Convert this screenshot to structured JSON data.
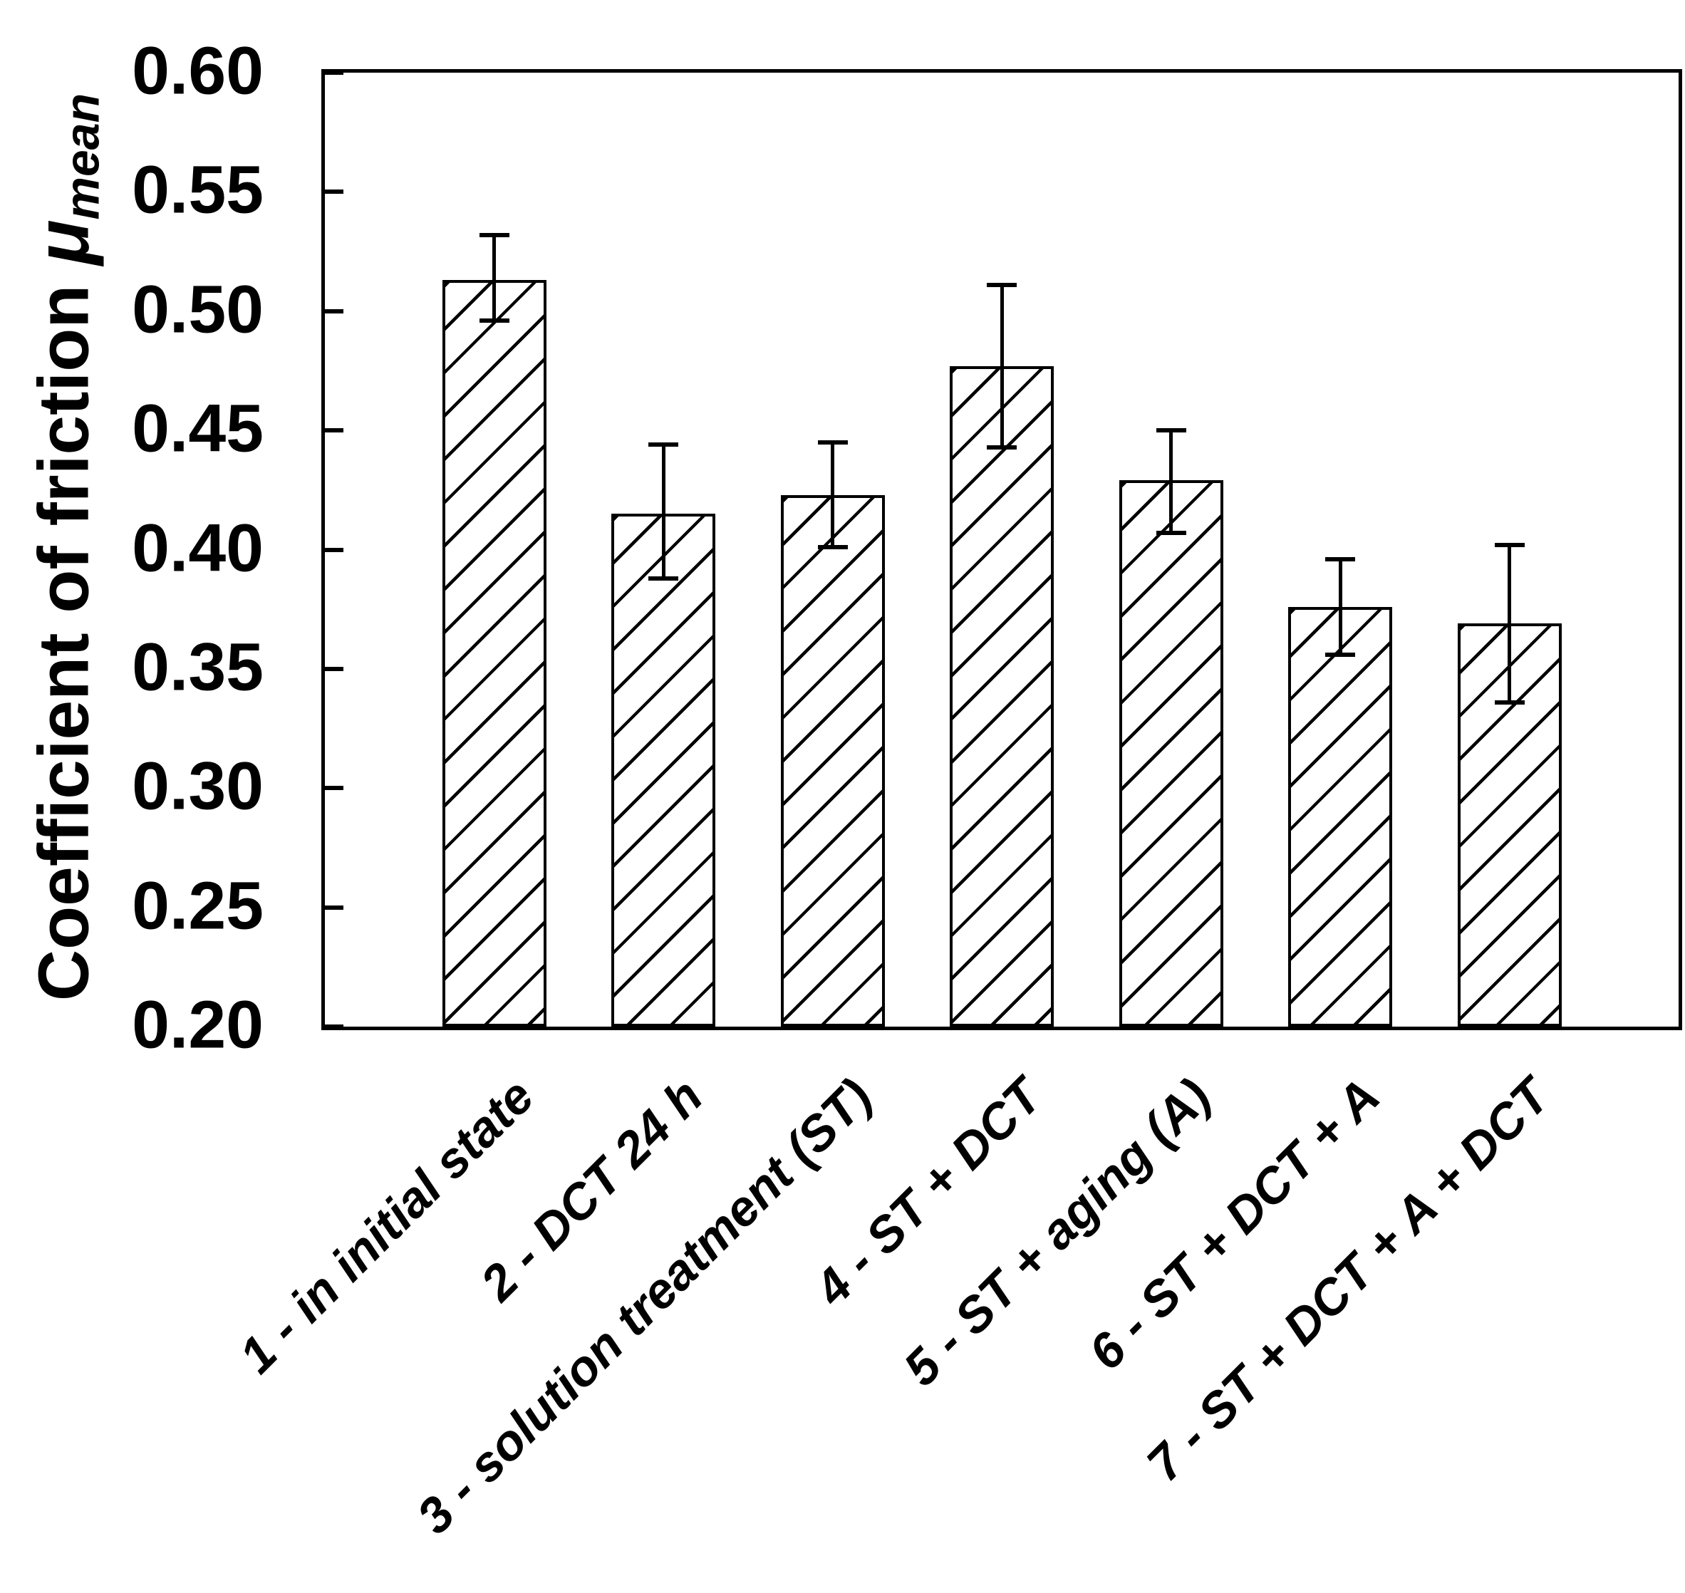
{
  "figure": {
    "background_color": "#ffffff",
    "ink_color": "#000000"
  },
  "chart_data": {
    "type": "bar",
    "title": "",
    "xlabel": "",
    "ylabel": {
      "text": "Coefficient of friction ",
      "symbol": "μ",
      "symbol_subscript": "mean"
    },
    "ylim": [
      0.2,
      0.6
    ],
    "ytick_step": 0.05,
    "ytick_labels": [
      "0.60",
      "0.55",
      "0.50",
      "0.45",
      "0.40",
      "0.35",
      "0.30",
      "0.25",
      "0.20"
    ],
    "grid": "off",
    "legend": "none",
    "bar_style": {
      "fill": "#ffffff",
      "hatch": "forward-diagonal",
      "edge_color": "#000000"
    },
    "categories": [
      "1 - in initial state",
      "2 - DCT 24 h",
      "3 - solution treatment (ST)",
      "4 - ST + DCT",
      "5 - ST + aging (A)",
      "6 - ST + DCT + A",
      "7 - ST + DCT + A + DCT"
    ],
    "series": [
      {
        "name": "Coefficient of friction μmean",
        "values": [
          0.513,
          0.415,
          0.423,
          0.477,
          0.429,
          0.376,
          0.369
        ],
        "error_low": [
          0.496,
          0.388,
          0.401,
          0.443,
          0.407,
          0.356,
          0.336
        ],
        "error_high": [
          0.532,
          0.444,
          0.445,
          0.511,
          0.45,
          0.396,
          0.402
        ]
      }
    ]
  }
}
